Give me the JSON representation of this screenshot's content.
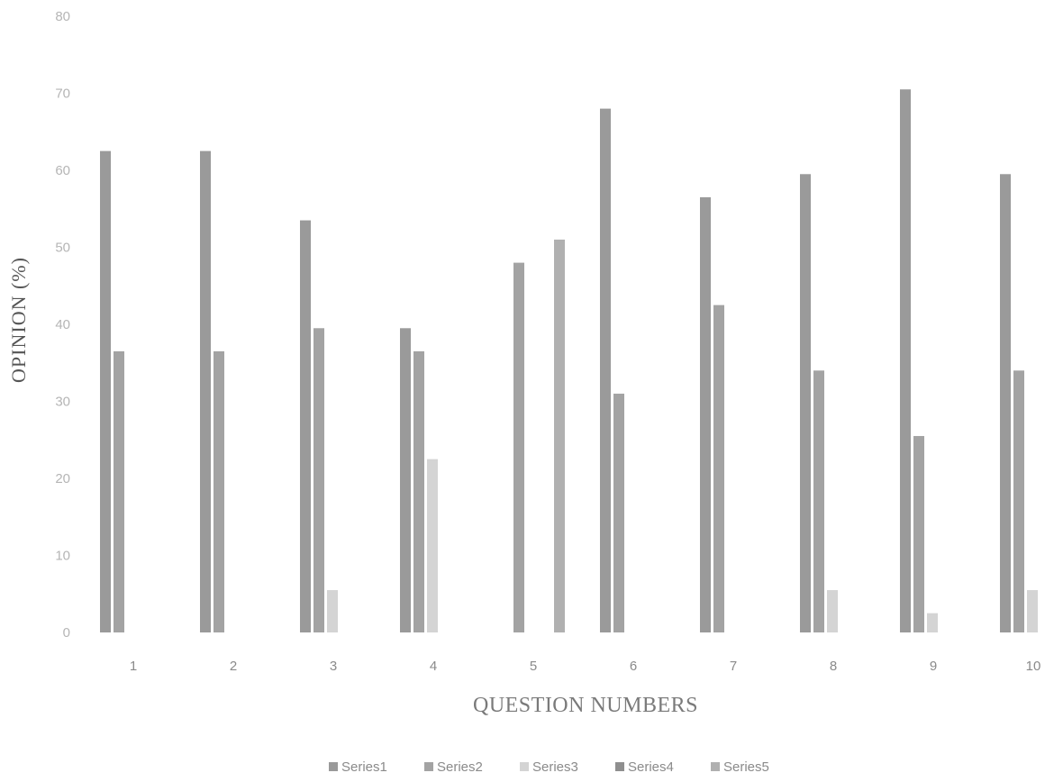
{
  "chart_data": {
    "type": "bar",
    "title": "",
    "xlabel": "QUESTION NUMBERS",
    "ylabel": "OPINION (%)",
    "ylim": [
      0,
      80
    ],
    "yticks": [
      "0",
      "10",
      "20",
      "30",
      "40",
      "50",
      "60",
      "70",
      "80"
    ],
    "categories": [
      "1",
      "2",
      "3",
      "4",
      "5",
      "6",
      "7",
      "8",
      "9",
      "10"
    ],
    "series": [
      {
        "name": "Series1",
        "color": "#9a9a9a",
        "values": [
          62.5,
          62.5,
          53.5,
          39.5,
          0,
          68,
          56.5,
          59.5,
          70.5,
          59.5
        ]
      },
      {
        "name": "Series2",
        "color": "#a3a3a3",
        "values": [
          36.5,
          36.5,
          39.5,
          36.5,
          48,
          31,
          42.5,
          34,
          25.5,
          34
        ]
      },
      {
        "name": "Series3",
        "color": "#d4d4d4",
        "values": [
          0,
          0,
          5.5,
          22.5,
          0,
          0,
          0,
          5.5,
          2.5,
          5.5
        ]
      },
      {
        "name": "Series4",
        "color": "#8f8f8f",
        "values": [
          0,
          0,
          0,
          0,
          0,
          0,
          0,
          0,
          0,
          0
        ]
      },
      {
        "name": "Series5",
        "color": "#b0b0b0",
        "values": [
          0,
          0,
          0,
          0,
          51,
          0,
          0,
          0,
          0,
          0
        ]
      }
    ],
    "grid": false,
    "legend_position": "bottom"
  }
}
